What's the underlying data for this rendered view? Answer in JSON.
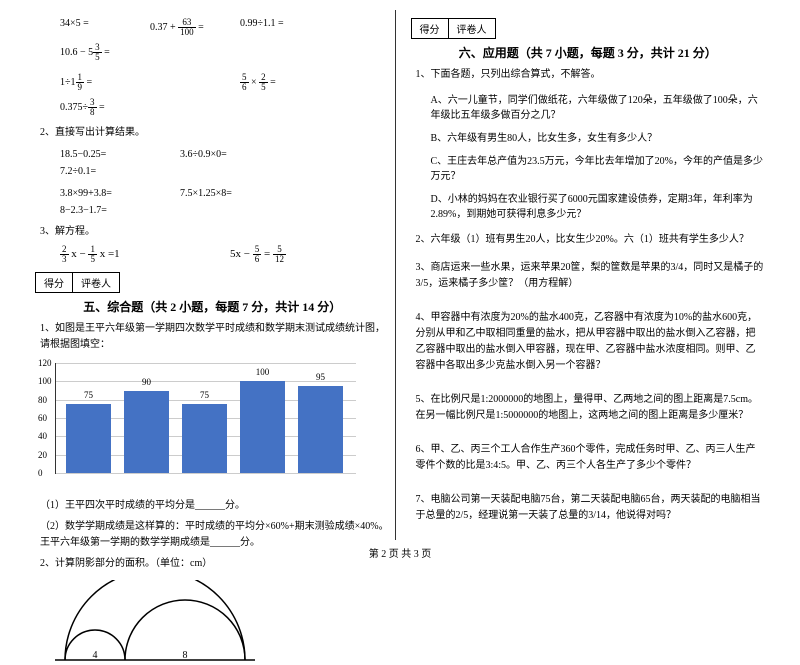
{
  "left": {
    "row1": [
      "34×5 =",
      "0.37 + 63/100 =",
      "0.99÷1.1 =",
      "10.6 − 5 3/5 ="
    ],
    "row2": [
      "1÷1 1/9 =",
      "5/6 × 2/5 =",
      "0.375÷ 3/8 ="
    ],
    "q2": "2、直接写出计算结果。",
    "row3": [
      "18.5−0.25=",
      "3.6÷0.9×0=",
      "7.2÷0.1="
    ],
    "row4": [
      "3.8×99+3.8=",
      "7.5×1.25×8=",
      "8−2.3−1.7="
    ],
    "q3": "3、解方程。",
    "eq_a_left": "2/3 x − 1/5 x =1",
    "eq_b_right": "5x − 5/6 = 5/12",
    "section5_box": [
      "得分",
      "评卷人"
    ],
    "section5_title": "五、综合题（共 2 小题，每题 7 分，共计 14 分）",
    "s5_q1": "1、如图是王平六年级第一学期四次数学平时成绩和数学期末测试成绩统计图，请根据图填空：",
    "chart": {
      "type": "bar",
      "y_max": 120,
      "y_step": 20,
      "values": [
        75,
        90,
        75,
        100,
        95
      ],
      "bar_color": "#4472c4",
      "grid_color": "#cccccc",
      "label_fontsize": 9
    },
    "s5_1a": "（1）王平四次平时成绩的平均分是______分。",
    "s5_1b": "（2）数学学期成绩是这样算的：平时成绩的平均分×60%+期末测验成绩×40%。王平六年级第一学期的数学学期成绩是______分。",
    "s5_q2": "2、计算阴影部分的面积。（单位：cm）",
    "arcs": {
      "r1": 4,
      "r2": 8
    }
  },
  "right": {
    "section6_box": [
      "得分",
      "评卷人"
    ],
    "section6_title": "六、应用题（共 7 小题，每题 3 分，共计 21 分）",
    "q1_head": "1、下面各题，只列出综合算式，不解答。",
    "q1_a": "A、六一儿童节，同学们做纸花，六年级做了120朵，五年级做了100朵，六年级比五年级多做百分之几？",
    "q1_b": "B、六年级有男生80人，比女生多，女生有多少人？",
    "q1_c": "C、王庄去年总产值为23.5万元，今年比去年增加了20%，今年的产值是多少万元？",
    "q1_d": "D、小林的妈妈在农业银行买了6000元国家建设债券，定期3年，年利率为2.89%，到期她可获得利息多少元？",
    "q2": "2、六年级（1）班有男生20人，比女生少20%。六（1）班共有学生多少人？",
    "q3": "3、商店运来一些水果，运来苹果20筐，梨的筐数是苹果的3/4，同时又是橘子的3/5，运来橘子多少筐？（用方程解）",
    "q4": "4、甲容器中有浓度为20%的盐水400克，乙容器中有浓度为10%的盐水600克，分别从甲和乙中取相同重量的盐水，把从甲容器中取出的盐水倒入乙容器，把乙容器中取出的盐水倒入甲容器，现在甲、乙容器中盐水浓度相同。则甲、乙容器中各取出多少克盐水倒入另一个容器？",
    "q5": "5、在比例尺是1:2000000的地图上，量得甲、乙两地之间的图上距离是7.5cm。在另一幅比例尺是1:5000000的地图上，这两地之间的图上距离是多少厘米？",
    "q6": "6、甲、乙、丙三个工人合作生产360个零件，完成任务时甲、乙、丙三人生产零件个数的比是3:4:5。甲、乙、丙三个人各生产了多少个零件？",
    "q7": "7、电脑公司第一天装配电脑75台，第二天装配电脑65台，两天装配的电脑相当于总量的2/5，经理说第一天装了总量的3/14，他说得对吗？"
  },
  "footer": "第 2 页 共 3 页"
}
